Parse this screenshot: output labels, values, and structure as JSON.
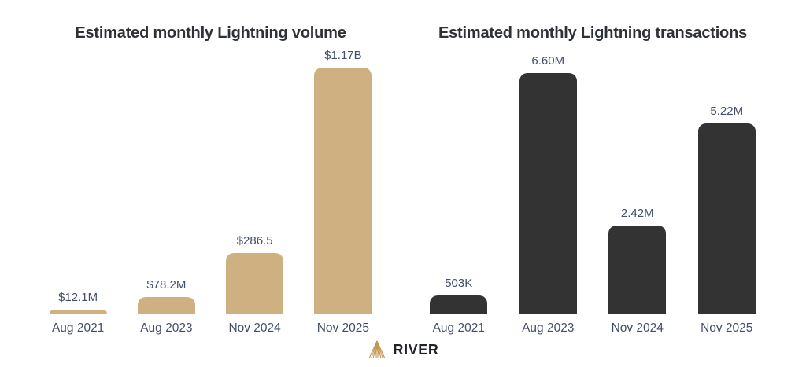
{
  "chart_data": [
    {
      "type": "bar",
      "title": "Estimated monthly Lightning volume",
      "categories": [
        "Aug 2021",
        "Aug 2023",
        "Nov 2024",
        "Nov 2025"
      ],
      "values": [
        12.1,
        78.2,
        286.5,
        1170
      ],
      "value_labels": [
        "$12.1M",
        "$78.2M",
        "$286.5",
        "$1.17B"
      ],
      "unit": "USD millions",
      "ylim": [
        0,
        1170
      ],
      "bar_color": "#CFB181",
      "grid": false,
      "legend": false
    },
    {
      "type": "bar",
      "title": "Estimated monthly Lightning transactions",
      "categories": [
        "Aug 2021",
        "Aug 2023",
        "Nov 2024",
        "Nov 2025"
      ],
      "values": [
        0.503,
        6.6,
        2.42,
        5.22
      ],
      "value_labels": [
        "503K",
        "6.60M",
        "2.42M",
        "5.22M"
      ],
      "unit": "millions of transactions",
      "ylim": [
        0,
        6.6
      ],
      "bar_color": "#333333",
      "grid": false,
      "legend": false
    }
  ],
  "footer": {
    "brand": "RIVER"
  },
  "colors": {
    "background": "#FFFFFF",
    "title_text": "#2E3135",
    "label_text": "#434E69",
    "axis_line": "#E8E8E8",
    "volume_bar": "#CFB181",
    "transactions_bar": "#333333",
    "logo_gold": "#C19954",
    "brand_text": "#1F2227"
  }
}
